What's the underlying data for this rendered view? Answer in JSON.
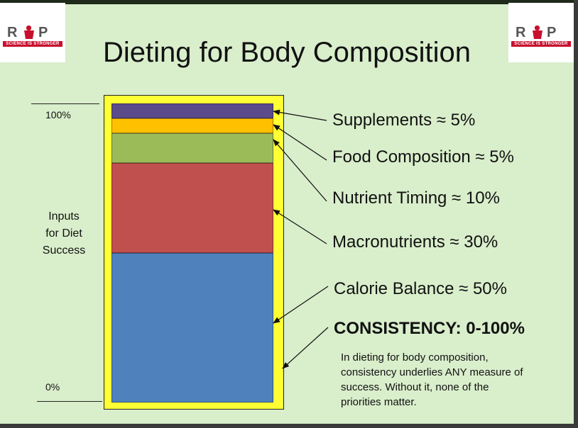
{
  "title": "Dieting for Body Composition",
  "logo": {
    "text": "RIP",
    "tagline": "SCIENCE IS STRONGER"
  },
  "axis": {
    "top_label": "100%",
    "bottom_label": "0%",
    "side_label": [
      "Inputs",
      "for Diet",
      "Success"
    ]
  },
  "segments": [
    {
      "name": "Supplements",
      "label": "Supplements ≈ 5%",
      "share": 5,
      "color": "#5b4b8a"
    },
    {
      "name": "Food Composition",
      "label": "Food Composition ≈ 5%",
      "share": 5,
      "color": "#ffc000"
    },
    {
      "name": "Nutrient Timing",
      "label": "Nutrient Timing ≈ 10%",
      "share": 10,
      "color": "#9bbb59"
    },
    {
      "name": "Macronutrients",
      "label": "Macronutrients ≈ 30%",
      "share": 30,
      "color": "#c0504d"
    },
    {
      "name": "Calorie Balance",
      "label": "Calorie Balance ≈ 50%",
      "share": 50,
      "color": "#4f81bd"
    }
  ],
  "frame_color": "#ffff33",
  "consistency": {
    "label": "CONSISTENCY: 0-100%",
    "note": "In dieting for body composition, consistency underlies ANY measure of success. Without it, none of the priorities matter."
  },
  "background_color": "#d9eecb"
}
